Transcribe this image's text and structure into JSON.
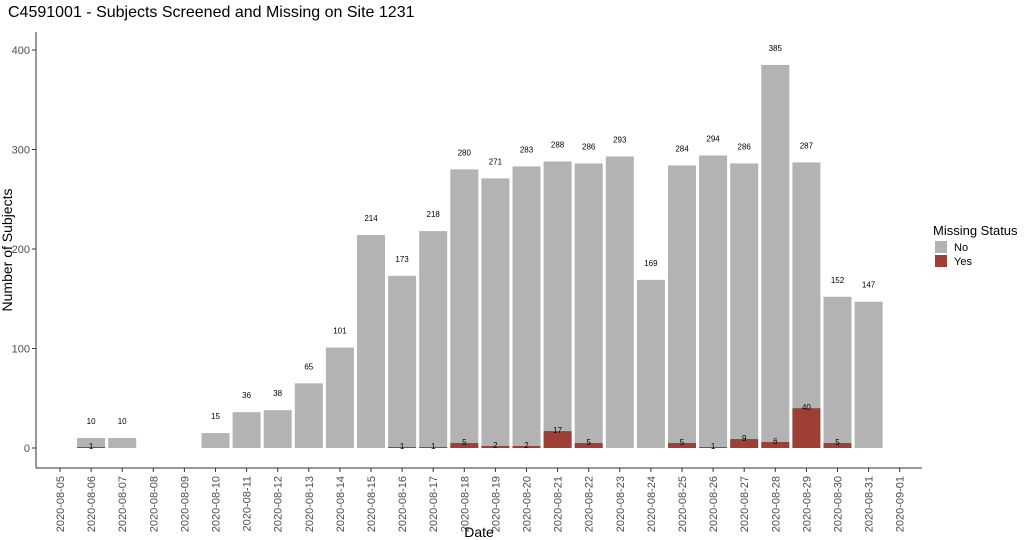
{
  "chart_data": {
    "type": "bar",
    "title": "C4591001 - Subjects Screened and Missing on Site 1231",
    "xlabel": "Date",
    "ylabel": "Number of Subjects",
    "ylim": [
      -20,
      425
    ],
    "yticks": [
      0,
      100,
      200,
      300,
      400
    ],
    "grid": false,
    "legend": {
      "title": "Missing Status",
      "position": "right"
    },
    "categories": [
      "2020-08-05",
      "2020-08-06",
      "2020-08-07",
      "2020-08-08",
      "2020-08-09",
      "2020-08-10",
      "2020-08-11",
      "2020-08-12",
      "2020-08-13",
      "2020-08-14",
      "2020-08-15",
      "2020-08-16",
      "2020-08-17",
      "2020-08-18",
      "2020-08-19",
      "2020-08-20",
      "2020-08-21",
      "2020-08-22",
      "2020-08-23",
      "2020-08-24",
      "2020-08-25",
      "2020-08-26",
      "2020-08-27",
      "2020-08-28",
      "2020-08-29",
      "2020-08-30",
      "2020-08-31",
      "2020-09-01"
    ],
    "series": [
      {
        "name": "No",
        "color": "#b3b3b3",
        "values": [
          null,
          10,
          10,
          null,
          null,
          15,
          36,
          38,
          65,
          101,
          214,
          173,
          218,
          280,
          271,
          283,
          288,
          286,
          293,
          169,
          284,
          294,
          286,
          385,
          287,
          152,
          147,
          null
        ]
      },
      {
        "name": "Yes",
        "color": "#9e3f35",
        "values": [
          null,
          1,
          null,
          null,
          null,
          null,
          null,
          null,
          null,
          null,
          null,
          1,
          1,
          5,
          2,
          2,
          17,
          5,
          null,
          null,
          5,
          1,
          9,
          6,
          40,
          5,
          null,
          null
        ]
      }
    ]
  }
}
